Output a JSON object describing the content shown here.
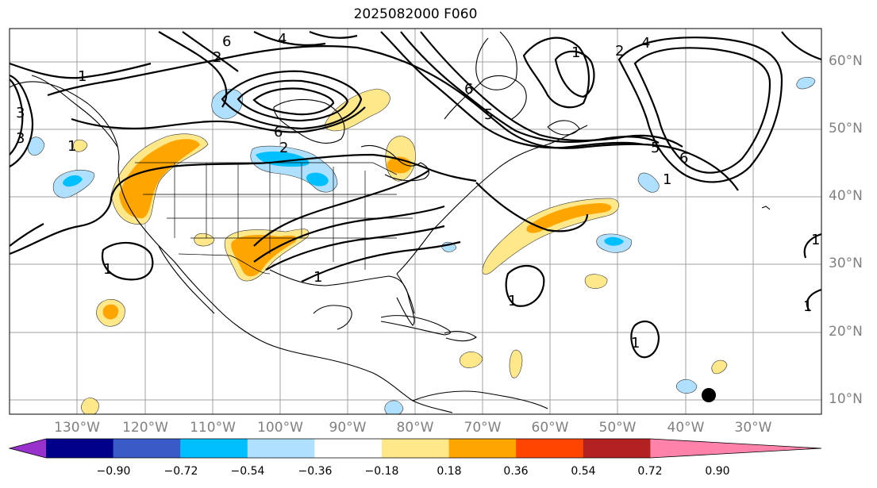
{
  "title": "2025082000 F060",
  "lat_labels": [
    "60°N",
    "50°N",
    "40°N",
    "30°N",
    "20°N",
    "10°N"
  ],
  "lon_labels": [
    "130°W",
    "120°W",
    "110°W",
    "100°W",
    "90°W",
    "80°W",
    "70°W",
    "60°W",
    "50°W",
    "40°W",
    "30°W"
  ],
  "colorbar": {
    "ticks": [
      "−0.90",
      "−0.72",
      "−0.54",
      "−0.36",
      "−0.18",
      "0.18",
      "0.36",
      "0.54",
      "0.72",
      "0.90"
    ],
    "colors": [
      "#9932cc",
      "#00008b",
      "#3a5bc7",
      "#00bfff",
      "#b0e0ff",
      "#ffffff",
      "#ffe88a",
      "#ffa500",
      "#ff4500",
      "#b22222",
      "#ff82ab"
    ]
  },
  "contour_labels": [
    "1",
    "2",
    "3",
    "4",
    "5",
    "6"
  ],
  "marker": "storm-center-dot"
}
